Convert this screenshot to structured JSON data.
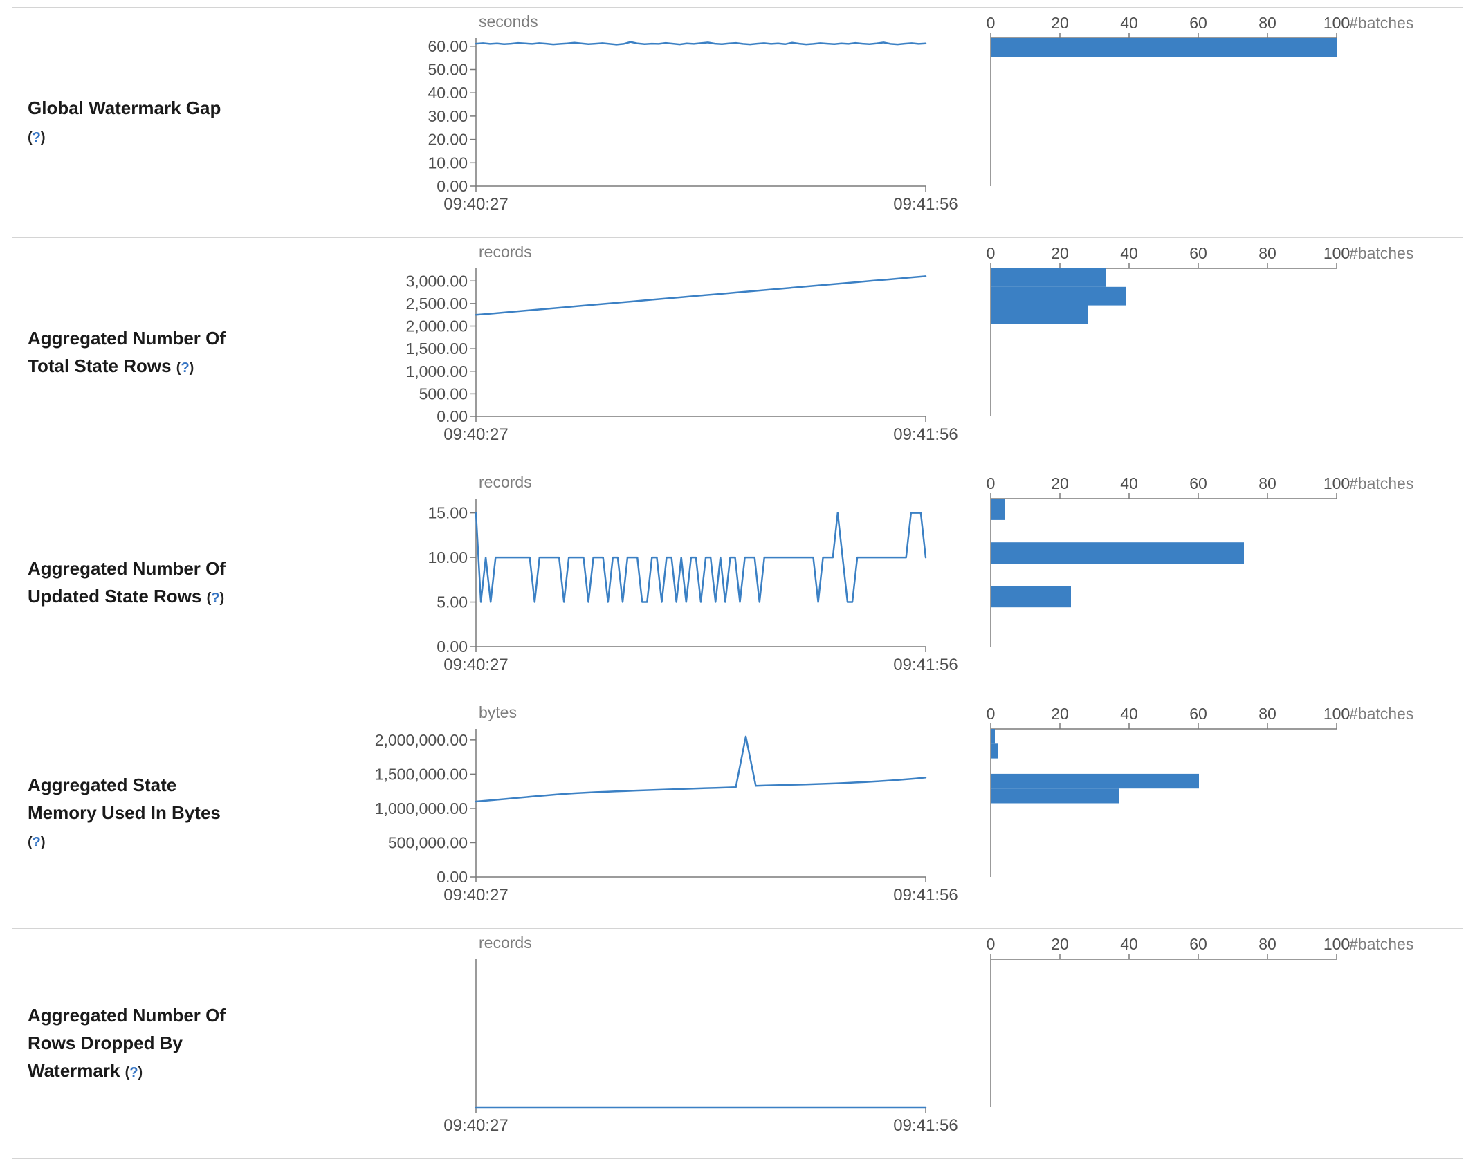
{
  "colors": {
    "line": "#3b80c4",
    "bar": "#3b80c4",
    "axis": "#7a7a7a",
    "tick_text": "#4f4f4f",
    "unit_text": "#7d7d7d",
    "label_text": "#1a1a1a",
    "help": "#3272c2",
    "border": "#d4d4d4",
    "background": "#ffffff"
  },
  "x_axis": {
    "start": "09:40:27",
    "end": "09:41:56"
  },
  "batches_axis": {
    "label": "#batches",
    "ticks": [
      0,
      20,
      40,
      60,
      80,
      100
    ],
    "max": 100
  },
  "help": {
    "open": "(",
    "mark": "?",
    "close": ")"
  },
  "chart_data": [
    {
      "id": "global-watermark-gap",
      "label": "Global Watermark Gap",
      "label_lines": [
        "Global Watermark Gap",
        "(?)"
      ],
      "timeline": {
        "type": "line",
        "unit": "seconds",
        "x_start": "09:40:27",
        "x_end": "09:41:56",
        "ylim": [
          0,
          63.5
        ],
        "yticks": [
          0,
          10,
          20,
          30,
          40,
          50,
          60
        ],
        "ytick_labels": [
          "0.00",
          "10.00",
          "20.00",
          "30.00",
          "40.00",
          "50.00",
          "60.00"
        ],
        "values": [
          61.1,
          61.3,
          61.0,
          61.2,
          60.9,
          61.1,
          61.4,
          61.2,
          61.0,
          61.3,
          61.1,
          60.8,
          61.0,
          61.2,
          61.5,
          61.2,
          60.9,
          61.1,
          61.3,
          61.0,
          60.7,
          61.0,
          61.8,
          61.2,
          60.9,
          61.1,
          61.0,
          61.4,
          61.1,
          60.8,
          61.2,
          61.0,
          61.3,
          61.6,
          61.1,
          60.9,
          61.2,
          61.4,
          61.0,
          60.8,
          61.1,
          61.3,
          61.0,
          61.2,
          60.9,
          61.5,
          61.1,
          60.8,
          61.0,
          61.3,
          61.1,
          60.9,
          61.2,
          61.0,
          61.4,
          61.1,
          60.9,
          61.2,
          61.6,
          61.0,
          60.8,
          61.1,
          61.3,
          61.0,
          61.2
        ]
      },
      "histogram": {
        "type": "bar",
        "orientation": "horizontal",
        "xlabel": "#batches",
        "xlim": [
          0,
          100
        ],
        "xticks": [
          0,
          20,
          40,
          60,
          80,
          100
        ],
        "bins": [
          {
            "lo": 55.2,
            "hi": 63.5,
            "count": 100
          }
        ]
      }
    },
    {
      "id": "aggregated-total-state-rows",
      "label": "Aggregated Number Of Total State Rows",
      "label_lines": [
        "Aggregated Number Of",
        "Total State Rows (?)"
      ],
      "timeline": {
        "type": "line",
        "unit": "records",
        "x_start": "09:40:27",
        "x_end": "09:41:56",
        "ylim": [
          0,
          3280
        ],
        "yticks": [
          0,
          500,
          1000,
          1500,
          2000,
          2500,
          3000
        ],
        "ytick_labels": [
          "0.00",
          "500.00",
          "1,000.00",
          "1,500.00",
          "2,000.00",
          "2,500.00",
          "3,000.00"
        ],
        "values": [
          2248,
          2281,
          2314,
          2347,
          2380,
          2413,
          2446,
          2479,
          2512,
          2545,
          2578,
          2611,
          2644,
          2677,
          2710,
          2743,
          2776,
          2809,
          2842,
          2875,
          2908,
          2941,
          2974,
          3007,
          3040,
          3073,
          3106
        ]
      },
      "histogram": {
        "type": "bar",
        "orientation": "horizontal",
        "xlabel": "#batches",
        "xlim": [
          0,
          100
        ],
        "xticks": [
          0,
          20,
          40,
          60,
          80,
          100
        ],
        "bins": [
          {
            "lo": 2870,
            "hi": 3280,
            "count": 33
          },
          {
            "lo": 2460,
            "hi": 2870,
            "count": 39
          },
          {
            "lo": 2050,
            "hi": 2460,
            "count": 28
          }
        ]
      }
    },
    {
      "id": "aggregated-updated-state-rows",
      "label": "Aggregated Number Of Updated State Rows",
      "label_lines": [
        "Aggregated Number Of",
        "Updated State Rows (?)"
      ],
      "timeline": {
        "type": "line",
        "unit": "records",
        "x_start": "09:40:27",
        "x_end": "09:41:56",
        "ylim": [
          0,
          16.6
        ],
        "yticks": [
          0,
          5,
          10,
          15
        ],
        "ytick_labels": [
          "0.00",
          "5.00",
          "10.00",
          "15.00"
        ],
        "values": [
          15,
          5,
          10,
          5,
          10,
          10,
          10,
          10,
          10,
          10,
          10,
          10,
          5,
          10,
          10,
          10,
          10,
          10,
          5,
          10,
          10,
          10,
          10,
          5,
          10,
          10,
          10,
          5,
          10,
          10,
          5,
          10,
          10,
          10,
          5,
          5,
          10,
          10,
          5,
          10,
          10,
          5,
          10,
          5,
          10,
          10,
          5,
          10,
          10,
          5,
          10,
          5,
          10,
          10,
          5,
          10,
          10,
          10,
          5,
          10,
          10,
          10,
          10,
          10,
          10,
          10,
          10,
          10,
          10,
          10,
          5,
          10,
          10,
          10,
          15,
          10,
          5,
          5,
          10,
          10,
          10,
          10,
          10,
          10,
          10,
          10,
          10,
          10,
          10,
          15,
          15,
          15,
          10
        ]
      },
      "histogram": {
        "type": "bar",
        "orientation": "horizontal",
        "xlabel": "#batches",
        "xlim": [
          0,
          100
        ],
        "xticks": [
          0,
          20,
          40,
          60,
          80,
          100
        ],
        "bins": [
          {
            "lo": 14.2,
            "hi": 16.6,
            "count": 4
          },
          {
            "lo": 9.3,
            "hi": 11.7,
            "count": 73
          },
          {
            "lo": 4.4,
            "hi": 6.8,
            "count": 23
          }
        ]
      }
    },
    {
      "id": "aggregated-state-memory-used",
      "label": "Aggregated State Memory Used In Bytes",
      "label_lines": [
        "Aggregated State",
        "Memory Used In Bytes",
        "(?)"
      ],
      "timeline": {
        "type": "line",
        "unit": "bytes",
        "x_start": "09:40:27",
        "x_end": "09:41:56",
        "ylim": [
          0,
          2160000
        ],
        "yticks": [
          0,
          500000,
          1000000,
          1500000,
          2000000
        ],
        "ytick_labels": [
          "0.00",
          "500,000.00",
          "1,000,000.00",
          "1,500,000.00",
          "2,000,000.00"
        ],
        "values": [
          1100000,
          1112000,
          1125000,
          1138000,
          1152000,
          1165000,
          1178000,
          1190000,
          1202000,
          1213000,
          1222000,
          1230000,
          1237000,
          1243000,
          1249000,
          1255000,
          1261000,
          1266000,
          1271000,
          1276000,
          1281000,
          1286000,
          1291000,
          1296000,
          1300000,
          1305000,
          1310000,
          2050000,
          1330000,
          1334000,
          1338000,
          1342000,
          1346000,
          1350000,
          1355000,
          1360000,
          1366000,
          1372000,
          1379000,
          1386000,
          1394000,
          1403000,
          1413000,
          1424000,
          1436000,
          1450000
        ]
      },
      "histogram": {
        "type": "bar",
        "orientation": "horizontal",
        "xlabel": "#batches",
        "xlim": [
          0,
          100
        ],
        "xticks": [
          0,
          20,
          40,
          60,
          80,
          100
        ],
        "bins": [
          {
            "lo": 1945000,
            "hi": 2160000,
            "count": 1
          },
          {
            "lo": 1730000,
            "hi": 1945000,
            "count": 2
          },
          {
            "lo": 1290000,
            "hi": 1505000,
            "count": 60
          },
          {
            "lo": 1075000,
            "hi": 1290000,
            "count": 37
          }
        ]
      }
    },
    {
      "id": "aggregated-rows-dropped-by-watermark",
      "label": "Aggregated Number Of Rows Dropped By Watermark",
      "label_lines": [
        "Aggregated Number Of",
        "Rows Dropped By",
        "Watermark (?)"
      ],
      "timeline": {
        "type": "line",
        "unit": "records",
        "x_start": "09:40:27",
        "x_end": "09:41:56",
        "ylim": [
          0,
          1
        ],
        "yticks": [],
        "ytick_labels": [],
        "values": [
          0,
          0,
          0,
          0,
          0,
          0,
          0,
          0,
          0,
          0,
          0,
          0,
          0,
          0,
          0,
          0,
          0,
          0,
          0,
          0
        ]
      },
      "histogram": {
        "type": "bar",
        "orientation": "horizontal",
        "xlabel": "#batches",
        "xlim": [
          0,
          100
        ],
        "xticks": [
          0,
          20,
          40,
          60,
          80,
          100
        ],
        "bins": []
      }
    }
  ]
}
